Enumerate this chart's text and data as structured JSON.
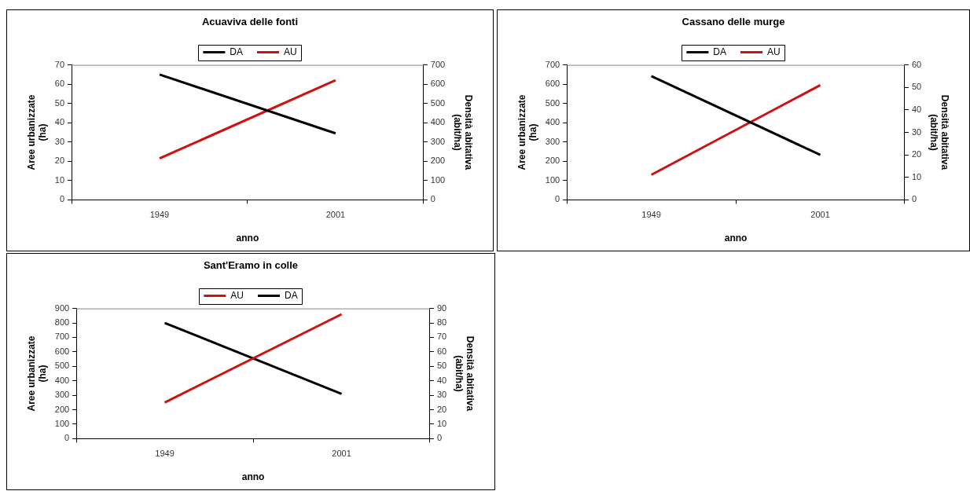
{
  "chart_data": [
    {
      "type": "line",
      "title": "Acuaviva delle fonti",
      "xlabel": "anno",
      "ylabel": "Aree urbanizzate (ha)",
      "y2label": "Densità abitativa (abit/ha)",
      "categories": [
        "1949",
        "2001"
      ],
      "series": [
        {
          "name": "DA",
          "color": "#000000",
          "values": [
            650,
            345
          ],
          "axis": "y2"
        },
        {
          "name": "AU",
          "color": "#d01010",
          "values": [
            21.5,
            62
          ]
        }
      ],
      "ylim": [
        0,
        70
      ],
      "yticks": [
        0,
        10,
        20,
        30,
        40,
        50,
        60,
        70
      ],
      "y2lim": [
        0,
        700
      ],
      "y2ticks": [
        0,
        100,
        200,
        300,
        400,
        500,
        600,
        700
      ],
      "legend": "top",
      "marker": "none",
      "grid": false
    },
    {
      "type": "line",
      "title": "Cassano delle murge",
      "xlabel": "anno",
      "ylabel": "Aree urbanizzate (ha)",
      "y2label": "Densità abitativa (abit/ha)",
      "categories": [
        "1949",
        "2001"
      ],
      "series": [
        {
          "name": "DA",
          "color": "#000000",
          "values": [
            55,
            20
          ],
          "axis": "y2"
        },
        {
          "name": "AU",
          "color": "#d01010",
          "values": [
            130,
            595
          ]
        }
      ],
      "ylim": [
        0,
        700
      ],
      "yticks": [
        0,
        100,
        200,
        300,
        400,
        500,
        600,
        700
      ],
      "y2lim": [
        0,
        60
      ],
      "y2ticks": [
        0,
        10,
        20,
        30,
        40,
        50,
        60
      ],
      "legend": "top",
      "marker": "none",
      "grid": false
    },
    {
      "type": "line",
      "title": "Sant'Eramo in colle",
      "xlabel": "anno",
      "ylabel": "Aree urbanizzate (ha)",
      "y2label": "Densità abitativa (abit/ha)",
      "categories": [
        "1949",
        "2001"
      ],
      "series": [
        {
          "name": "AU",
          "color": "#d01010",
          "values": [
            250,
            860
          ]
        },
        {
          "name": "DA",
          "color": "#000000",
          "values": [
            80,
            31
          ],
          "axis": "y2"
        }
      ],
      "ylim": [
        0,
        900
      ],
      "yticks": [
        0,
        100,
        200,
        300,
        400,
        500,
        600,
        700,
        800,
        900
      ],
      "y2lim": [
        0,
        90
      ],
      "y2ticks": [
        0,
        10,
        20,
        30,
        40,
        50,
        60,
        70,
        80,
        90
      ],
      "legend": "top",
      "marker": "none",
      "grid": false
    }
  ]
}
